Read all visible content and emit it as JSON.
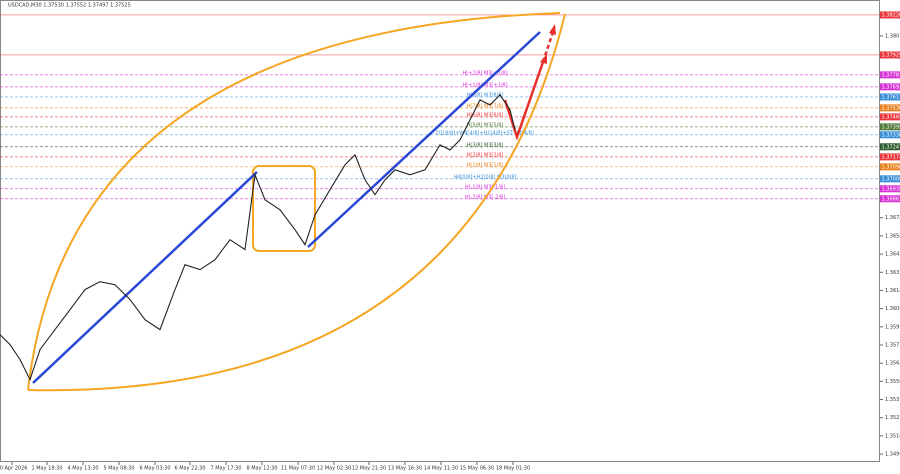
{
  "chart_data": {
    "type": "line",
    "title": "USDCAD,M30  1.37530 1.37552 1.37497 1.37525",
    "x": [
      0,
      10,
      20,
      30,
      40,
      55,
      70,
      85,
      100,
      115,
      130,
      145,
      160,
      175,
      185,
      200,
      215,
      230,
      245,
      255,
      265,
      280,
      295,
      305,
      315,
      330,
      345,
      355,
      365,
      375,
      385,
      395,
      410,
      425,
      440,
      450,
      460,
      470,
      480,
      490,
      500,
      510,
      515
    ],
    "series": [
      {
        "name": "USDCAD",
        "color": "#222222",
        "values": [
          1.35852,
          1.35778,
          1.35667,
          1.35518,
          1.35741,
          1.35889,
          1.36037,
          1.36186,
          1.36245,
          1.36223,
          1.36112,
          1.35963,
          1.35889,
          1.36186,
          1.36371,
          1.36334,
          1.36408,
          1.36557,
          1.36483,
          1.37039,
          1.36853,
          1.36779,
          1.36631,
          1.3652,
          1.36742,
          1.36928,
          1.37113,
          1.37187,
          1.37002,
          1.36891,
          1.37002,
          1.37076,
          1.37039,
          1.37076,
          1.37261,
          1.37224,
          1.37298,
          1.37447,
          1.37595,
          1.37558,
          1.37632,
          1.37521,
          1.37373
        ]
      }
    ],
    "xlim": [
      0,
      880
    ],
    "xticks": [
      {
        "value": 12,
        "label": "30 Apr 2026"
      },
      {
        "value": 47,
        "label": "1 May 18:30"
      },
      {
        "value": 83,
        "label": "4 May 13:30"
      },
      {
        "value": 119,
        "label": "5 May 08:30"
      },
      {
        "value": 155,
        "label": "6 May 03:30"
      },
      {
        "value": 190,
        "label": "6 May 22:30"
      },
      {
        "value": 226,
        "label": "7 May 17:30"
      },
      {
        "value": 262,
        "label": "8 May 12:30"
      },
      {
        "value": 298,
        "label": "11 May 07:30"
      },
      {
        "value": 334,
        "label": "12 May 02:30"
      },
      {
        "value": 369,
        "label": "12 May 21:30"
      },
      {
        "value": 405,
        "label": "13 May 16:30"
      },
      {
        "value": 441,
        "label": "14 May 11:30"
      },
      {
        "value": 477,
        "label": "15 May 06:30"
      },
      {
        "value": 513,
        "label": "18 May 01:30"
      }
    ],
    "ylim": [
      1.34906,
      1.38337
    ],
    "yticks": [
      {
        "value": 1.3807,
        "label": "1.38070"
      },
      {
        "value": 1.3672,
        "label": "1.36720"
      },
      1.36585,
      {
        "value": 1.3645,
        "label": "1.36450"
      },
      1.36315,
      {
        "value": 1.3618,
        "label": "1.36180"
      },
      1.36045,
      {
        "value": 1.3591,
        "label": "1.35910"
      },
      1.35775,
      {
        "value": 1.3564,
        "label": "1.35640"
      },
      1.35505,
      {
        "value": 1.3537,
        "label": "1.35370"
      },
      1.35235,
      {
        "value": 1.351,
        "label": "1.35100"
      },
      1.34965
    ],
    "levels": [
      {
        "value": 1.38226,
        "color": "#e8383d"
      },
      {
        "value": 1.37929,
        "color": "#e8383d"
      },
      {
        "value": 1.37781,
        "color": "#d633d6",
        "label": "H[+2/8] M3[+2/8]"
      },
      {
        "value": 1.37692,
        "color": "#d633d6",
        "label": "H[+1/8] M3[+1/8]"
      },
      {
        "value": 1.37617,
        "color": "#3a8fd8",
        "label": "H[8/8] M3[8/8]"
      },
      {
        "value": 1.37536,
        "color": "#e8831f",
        "label": "H[7/8] M3[7/8]"
      },
      {
        "value": 1.37469,
        "color": "#e8383d",
        "label": "H[6/8] M3[6/8]"
      },
      {
        "value": 1.37395,
        "color": "#4f7a3a",
        "label": "H[5/8] M3[5/8]"
      },
      {
        "value": 1.37336,
        "color": "#3a8fd8",
        "label": "D1[8/8]+W4[4/8]+H1[4/8]+ST M3[4/8]"
      },
      {
        "value": 1.37247,
        "color": "#2e5d2e",
        "label": "H[3/8] M3[3/8]"
      },
      {
        "value": 1.37172,
        "color": "#e8383d",
        "label": "H[2/8] M3[2/8]"
      },
      {
        "value": 1.37098,
        "color": "#e8831f",
        "label": "H[1/8] M3[1/8]"
      },
      {
        "value": 1.37009,
        "color": "#3a8fd8",
        "label": "H4[0/8]+H1[0/8] M3[0/8]"
      },
      {
        "value": 1.36935,
        "color": "#d633d6",
        "label": "H[-1/8] M3[-1/8]"
      },
      {
        "value": 1.36861,
        "color": "#d633d6",
        "label": "H[-2/8] M3[-2/8]"
      }
    ]
  }
}
